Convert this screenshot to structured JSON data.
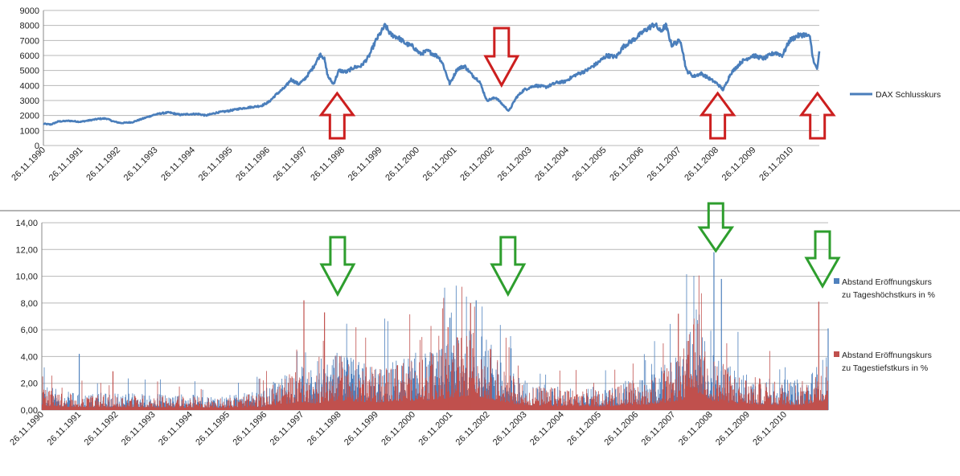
{
  "colors": {
    "dax_line": "#4a7ebb",
    "high_bars": "#4f81bd",
    "low_bars": "#c0504d",
    "red_arrow": "#cc1f1f",
    "green_arrow": "#2e9e2e",
    "grid": "#b8b8b8",
    "separator": "#9c9c9c"
  },
  "chart_data": [
    {
      "type": "line",
      "title": "",
      "legend": [
        "DAX Schlusskurs"
      ],
      "legend_position": "right",
      "ylim": [
        0,
        9000
      ],
      "y_ticks": [
        "0",
        "1000",
        "2000",
        "3000",
        "4000",
        "5000",
        "6000",
        "7000",
        "8000",
        "9000"
      ],
      "x_tick_labels": [
        "26.11.1990",
        "26.11.1991",
        "26.11.1992",
        "26.11.1993",
        "26.11.1994",
        "26.11.1995",
        "26.11.1996",
        "26.11.1997",
        "26.11.1998",
        "26.11.1999",
        "26.11.2000",
        "26.11.2001",
        "26.11.2002",
        "26.11.2003",
        "26.11.2004",
        "26.11.2005",
        "26.11.2006",
        "26.11.2007",
        "26.11.2008",
        "26.11.2009",
        "26.11.2010"
      ],
      "xlim": [
        1990.9,
        2011.9
      ],
      "series": [
        {
          "name": "DAX Schlusskurs",
          "x": [
            1990.9,
            1991.1,
            1991.3,
            1991.6,
            1991.9,
            1992.2,
            1992.4,
            1992.6,
            1992.8,
            1993.0,
            1993.3,
            1993.6,
            1993.9,
            1994.1,
            1994.3,
            1994.6,
            1994.9,
            1995.1,
            1995.3,
            1995.6,
            1995.9,
            1996.2,
            1996.5,
            1996.8,
            1997.0,
            1997.2,
            1997.45,
            1997.6,
            1997.8,
            1997.95,
            1998.2,
            1998.4,
            1998.5,
            1998.6,
            1998.75,
            1998.9,
            1999.1,
            1999.3,
            1999.5,
            1999.7,
            1999.9,
            2000.15,
            2000.3,
            2000.5,
            2000.7,
            2000.9,
            2001.1,
            2001.3,
            2001.6,
            2001.7,
            2001.9,
            2002.1,
            2002.3,
            2002.5,
            2002.7,
            2002.9,
            2003.15,
            2003.3,
            2003.5,
            2003.7,
            2003.9,
            2004.2,
            2004.5,
            2004.8,
            2005.0,
            2005.3,
            2005.6,
            2005.9,
            2006.15,
            2006.4,
            2006.6,
            2006.9,
            2007.2,
            2007.45,
            2007.6,
            2007.75,
            2007.9,
            2008.15,
            2008.3,
            2008.5,
            2008.7,
            2008.9,
            2009.15,
            2009.3,
            2009.5,
            2009.8,
            2010.1,
            2010.4,
            2010.7,
            2010.9,
            2011.1,
            2011.3,
            2011.5,
            2011.65,
            2011.75,
            2011.85,
            2011.9
          ],
          "values": [
            1450,
            1400,
            1600,
            1650,
            1580,
            1700,
            1780,
            1800,
            1600,
            1500,
            1550,
            1800,
            2050,
            2150,
            2200,
            2050,
            2100,
            2100,
            2000,
            2200,
            2300,
            2450,
            2550,
            2650,
            2900,
            3400,
            3900,
            4400,
            4100,
            4350,
            5200,
            6100,
            5800,
            4600,
            4100,
            5000,
            4900,
            5200,
            5300,
            5900,
            7000,
            8000,
            7400,
            7200,
            6800,
            6600,
            6100,
            6300,
            5900,
            5500,
            4100,
            5100,
            5300,
            4700,
            4300,
            3000,
            3200,
            2800,
            2300,
            3200,
            3700,
            4000,
            3900,
            4200,
            4250,
            4700,
            5000,
            5500,
            6000,
            5900,
            6600,
            7100,
            7700,
            8100,
            7600,
            8000,
            6700,
            7000,
            5000,
            4600,
            4800,
            4500,
            4100,
            3700,
            4800,
            5600,
            6000,
            5800,
            6200,
            6000,
            7000,
            7300,
            7400,
            7200,
            5500,
            5100,
            6200
          ]
        }
      ],
      "annotations": [
        {
          "kind": "red-up-arrow",
          "x": 1998.85
        },
        {
          "kind": "red-down-arrow",
          "x": 2003.3
        },
        {
          "kind": "red-up-arrow",
          "x": 2009.15
        },
        {
          "kind": "red-up-arrow",
          "x": 2011.85
        }
      ]
    },
    {
      "type": "bar",
      "title": "",
      "legend": [
        "Abstand Eröffnungskurs zu Tageshöchstkurs in %",
        "Abstand Eröffnungskurs zu Tagestiefstkurs in %"
      ],
      "legend_position": "right",
      "ylim": [
        0,
        14
      ],
      "y_ticks": [
        "0,00",
        "2,00",
        "4,00",
        "6,00",
        "8,00",
        "10,00",
        "12,00",
        "14,00"
      ],
      "x_tick_labels": [
        "26.11.1990",
        "26.11.1991",
        "26.11.1992",
        "26.11.1993",
        "26.11.1994",
        "26.11.1995",
        "26.11.1996",
        "26.11.1997",
        "26.11.1998",
        "26.11.1999",
        "26.11.2000",
        "26.11.2001",
        "26.11.2002",
        "26.11.2003",
        "26.11.2004",
        "26.11.2005",
        "26.11.2006",
        "26.11.2007",
        "26.11.2008",
        "26.11.2009",
        "26.11.2010"
      ],
      "xlim": [
        1990.9,
        2011.9
      ],
      "series": [
        {
          "name": "Abstand Eröffnungskurs zu Tageshöchstkurs in %",
          "envelope_x": [
            1990.9,
            1991.4,
            1992.0,
            1993.0,
            1994.0,
            1995.0,
            1996.0,
            1996.8,
            1997.3,
            1997.8,
            1998.3,
            1998.8,
            1999.3,
            1999.8,
            2000.3,
            2000.9,
            2001.5,
            2002.0,
            2002.4,
            2002.9,
            2003.4,
            2004.0,
            2005.0,
            2006.0,
            2006.5,
            2007.0,
            2007.5,
            2008.0,
            2008.4,
            2008.8,
            2009.4,
            2010.0,
            2010.6,
            2011.2,
            2011.6,
            2011.9
          ],
          "envelope_values": [
            1.4,
            1.0,
            0.9,
            0.9,
            0.9,
            0.8,
            0.8,
            1.0,
            1.8,
            2.4,
            2.0,
            3.0,
            2.6,
            2.4,
            2.7,
            3.0,
            3.2,
            4.0,
            4.5,
            3.4,
            2.2,
            1.4,
            1.2,
            1.2,
            1.6,
            1.6,
            2.3,
            3.2,
            5.5,
            3.0,
            2.2,
            1.8,
            1.6,
            1.6,
            2.4,
            3.0
          ],
          "spikes": [
            {
              "x": 1991.9,
              "v": 4.2
            },
            {
              "x": 2002.5,
              "v": 8.2
            },
            {
              "x": 2008.85,
              "v": 11.8
            },
            {
              "x": 2009.05,
              "v": 9.8
            },
            {
              "x": 2011.9,
              "v": 6.1
            },
            {
              "x": 2001.8,
              "v": 6.9
            }
          ]
        },
        {
          "name": "Abstand Eröffnungskurs zu Tagestiefstkurs in %",
          "envelope_x": [
            1990.9,
            1991.4,
            1992.0,
            1993.0,
            1994.0,
            1995.0,
            1996.0,
            1996.8,
            1997.3,
            1997.8,
            1998.3,
            1998.8,
            1999.3,
            1999.8,
            2000.3,
            2000.9,
            2001.5,
            2002.0,
            2002.4,
            2002.9,
            2003.4,
            2004.0,
            2005.0,
            2006.0,
            2006.5,
            2007.0,
            2007.5,
            2008.0,
            2008.4,
            2008.8,
            2009.4,
            2010.0,
            2010.6,
            2011.2,
            2011.6,
            2011.9
          ],
          "envelope_values": [
            1.3,
            0.9,
            0.8,
            0.8,
            0.8,
            0.7,
            0.7,
            0.9,
            1.7,
            2.3,
            1.9,
            2.9,
            2.5,
            2.2,
            2.6,
            2.8,
            3.0,
            3.9,
            4.3,
            3.2,
            2.0,
            1.3,
            1.1,
            1.1,
            1.5,
            1.5,
            2.1,
            3.0,
            5.3,
            2.8,
            2.0,
            1.7,
            1.5,
            1.5,
            2.3,
            2.8
          ],
          "spikes": [
            {
              "x": 1997.9,
              "v": 8.2
            },
            {
              "x": 1998.45,
              "v": 7.3
            },
            {
              "x": 2002.35,
              "v": 8.0
            },
            {
              "x": 2007.9,
              "v": 7.2
            },
            {
              "x": 2011.65,
              "v": 8.1
            },
            {
              "x": 1992.8,
              "v": 2.9
            },
            {
              "x": 2001.75,
              "v": 6.2
            }
          ]
        }
      ],
      "annotations": [
        {
          "kind": "green-down-arrow",
          "x": 1998.8
        },
        {
          "kind": "green-down-arrow",
          "x": 2003.35
        },
        {
          "kind": "green-down-arrow",
          "x": 2008.9
        },
        {
          "kind": "green-down-arrow",
          "x": 2011.75
        }
      ]
    }
  ]
}
